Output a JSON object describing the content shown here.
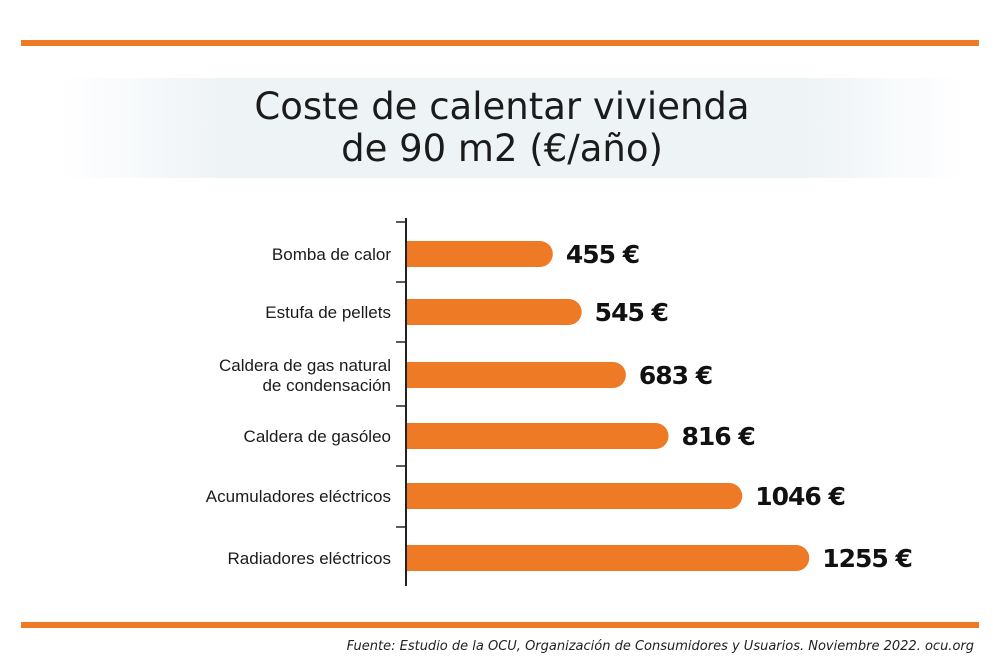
{
  "colors": {
    "accent": "#ee7a26",
    "axis": "#222222",
    "text": "#1b1b1b"
  },
  "chart_data": {
    "type": "bar",
    "orientation": "horizontal",
    "title": "Coste de calentar vivienda\nde 90 m2 (€/año)",
    "categories": [
      "Bomba de calor",
      "Estufa de pellets",
      "Caldera de gas natural\nde condensación",
      "Caldera de gasóleo",
      "Acumuladores eléctricos",
      "Radiadores eléctricos"
    ],
    "values": [
      455,
      545,
      683,
      816,
      1046,
      1255
    ],
    "data_labels": [
      "455 €",
      "545 €",
      "683 €",
      "816 €",
      "1046 €",
      "1255 €"
    ],
    "grid": false,
    "legend": "none"
  },
  "source": "Fuente:  Estudio de la OCU, Organización de Consumidores y Usuarios. Noviembre 2022.  ocu.org"
}
